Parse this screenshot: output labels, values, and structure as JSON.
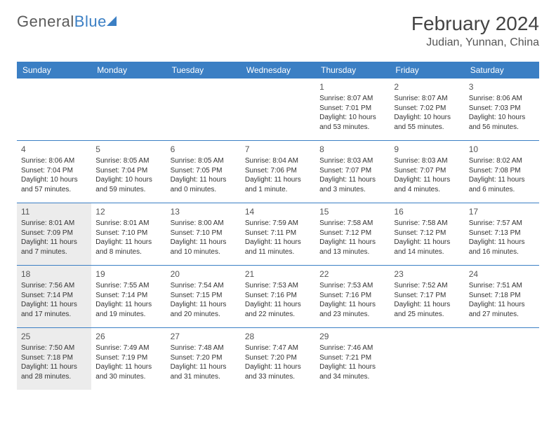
{
  "logo": {
    "word1": "General",
    "word2": "Blue"
  },
  "title": "February 2024",
  "location": "Judian, Yunnan, China",
  "colors": {
    "header_bg": "#3b7fc4",
    "header_text": "#ffffff",
    "shaded_bg": "#ececec",
    "border": "#3b7fc4",
    "text": "#333333"
  },
  "dayNames": [
    "Sunday",
    "Monday",
    "Tuesday",
    "Wednesday",
    "Thursday",
    "Friday",
    "Saturday"
  ],
  "weeks": [
    [
      {
        "num": "",
        "sunrise": "",
        "sunset": "",
        "daylight": ""
      },
      {
        "num": "",
        "sunrise": "",
        "sunset": "",
        "daylight": ""
      },
      {
        "num": "",
        "sunrise": "",
        "sunset": "",
        "daylight": ""
      },
      {
        "num": "",
        "sunrise": "",
        "sunset": "",
        "daylight": ""
      },
      {
        "num": "1",
        "sunrise": "Sunrise: 8:07 AM",
        "sunset": "Sunset: 7:01 PM",
        "daylight": "Daylight: 10 hours and 53 minutes."
      },
      {
        "num": "2",
        "sunrise": "Sunrise: 8:07 AM",
        "sunset": "Sunset: 7:02 PM",
        "daylight": "Daylight: 10 hours and 55 minutes."
      },
      {
        "num": "3",
        "sunrise": "Sunrise: 8:06 AM",
        "sunset": "Sunset: 7:03 PM",
        "daylight": "Daylight: 10 hours and 56 minutes."
      }
    ],
    [
      {
        "num": "4",
        "sunrise": "Sunrise: 8:06 AM",
        "sunset": "Sunset: 7:04 PM",
        "daylight": "Daylight: 10 hours and 57 minutes."
      },
      {
        "num": "5",
        "sunrise": "Sunrise: 8:05 AM",
        "sunset": "Sunset: 7:04 PM",
        "daylight": "Daylight: 10 hours and 59 minutes."
      },
      {
        "num": "6",
        "sunrise": "Sunrise: 8:05 AM",
        "sunset": "Sunset: 7:05 PM",
        "daylight": "Daylight: 11 hours and 0 minutes."
      },
      {
        "num": "7",
        "sunrise": "Sunrise: 8:04 AM",
        "sunset": "Sunset: 7:06 PM",
        "daylight": "Daylight: 11 hours and 1 minute."
      },
      {
        "num": "8",
        "sunrise": "Sunrise: 8:03 AM",
        "sunset": "Sunset: 7:07 PM",
        "daylight": "Daylight: 11 hours and 3 minutes."
      },
      {
        "num": "9",
        "sunrise": "Sunrise: 8:03 AM",
        "sunset": "Sunset: 7:07 PM",
        "daylight": "Daylight: 11 hours and 4 minutes."
      },
      {
        "num": "10",
        "sunrise": "Sunrise: 8:02 AM",
        "sunset": "Sunset: 7:08 PM",
        "daylight": "Daylight: 11 hours and 6 minutes."
      }
    ],
    [
      {
        "num": "11",
        "sunrise": "Sunrise: 8:01 AM",
        "sunset": "Sunset: 7:09 PM",
        "daylight": "Daylight: 11 hours and 7 minutes.",
        "shaded": true
      },
      {
        "num": "12",
        "sunrise": "Sunrise: 8:01 AM",
        "sunset": "Sunset: 7:10 PM",
        "daylight": "Daylight: 11 hours and 8 minutes."
      },
      {
        "num": "13",
        "sunrise": "Sunrise: 8:00 AM",
        "sunset": "Sunset: 7:10 PM",
        "daylight": "Daylight: 11 hours and 10 minutes."
      },
      {
        "num": "14",
        "sunrise": "Sunrise: 7:59 AM",
        "sunset": "Sunset: 7:11 PM",
        "daylight": "Daylight: 11 hours and 11 minutes."
      },
      {
        "num": "15",
        "sunrise": "Sunrise: 7:58 AM",
        "sunset": "Sunset: 7:12 PM",
        "daylight": "Daylight: 11 hours and 13 minutes."
      },
      {
        "num": "16",
        "sunrise": "Sunrise: 7:58 AM",
        "sunset": "Sunset: 7:12 PM",
        "daylight": "Daylight: 11 hours and 14 minutes."
      },
      {
        "num": "17",
        "sunrise": "Sunrise: 7:57 AM",
        "sunset": "Sunset: 7:13 PM",
        "daylight": "Daylight: 11 hours and 16 minutes."
      }
    ],
    [
      {
        "num": "18",
        "sunrise": "Sunrise: 7:56 AM",
        "sunset": "Sunset: 7:14 PM",
        "daylight": "Daylight: 11 hours and 17 minutes.",
        "shaded": true
      },
      {
        "num": "19",
        "sunrise": "Sunrise: 7:55 AM",
        "sunset": "Sunset: 7:14 PM",
        "daylight": "Daylight: 11 hours and 19 minutes."
      },
      {
        "num": "20",
        "sunrise": "Sunrise: 7:54 AM",
        "sunset": "Sunset: 7:15 PM",
        "daylight": "Daylight: 11 hours and 20 minutes."
      },
      {
        "num": "21",
        "sunrise": "Sunrise: 7:53 AM",
        "sunset": "Sunset: 7:16 PM",
        "daylight": "Daylight: 11 hours and 22 minutes."
      },
      {
        "num": "22",
        "sunrise": "Sunrise: 7:53 AM",
        "sunset": "Sunset: 7:16 PM",
        "daylight": "Daylight: 11 hours and 23 minutes."
      },
      {
        "num": "23",
        "sunrise": "Sunrise: 7:52 AM",
        "sunset": "Sunset: 7:17 PM",
        "daylight": "Daylight: 11 hours and 25 minutes."
      },
      {
        "num": "24",
        "sunrise": "Sunrise: 7:51 AM",
        "sunset": "Sunset: 7:18 PM",
        "daylight": "Daylight: 11 hours and 27 minutes."
      }
    ],
    [
      {
        "num": "25",
        "sunrise": "Sunrise: 7:50 AM",
        "sunset": "Sunset: 7:18 PM",
        "daylight": "Daylight: 11 hours and 28 minutes.",
        "shaded": true
      },
      {
        "num": "26",
        "sunrise": "Sunrise: 7:49 AM",
        "sunset": "Sunset: 7:19 PM",
        "daylight": "Daylight: 11 hours and 30 minutes."
      },
      {
        "num": "27",
        "sunrise": "Sunrise: 7:48 AM",
        "sunset": "Sunset: 7:20 PM",
        "daylight": "Daylight: 11 hours and 31 minutes."
      },
      {
        "num": "28",
        "sunrise": "Sunrise: 7:47 AM",
        "sunset": "Sunset: 7:20 PM",
        "daylight": "Daylight: 11 hours and 33 minutes."
      },
      {
        "num": "29",
        "sunrise": "Sunrise: 7:46 AM",
        "sunset": "Sunset: 7:21 PM",
        "daylight": "Daylight: 11 hours and 34 minutes."
      },
      {
        "num": "",
        "sunrise": "",
        "sunset": "",
        "daylight": ""
      },
      {
        "num": "",
        "sunrise": "",
        "sunset": "",
        "daylight": ""
      }
    ]
  ]
}
